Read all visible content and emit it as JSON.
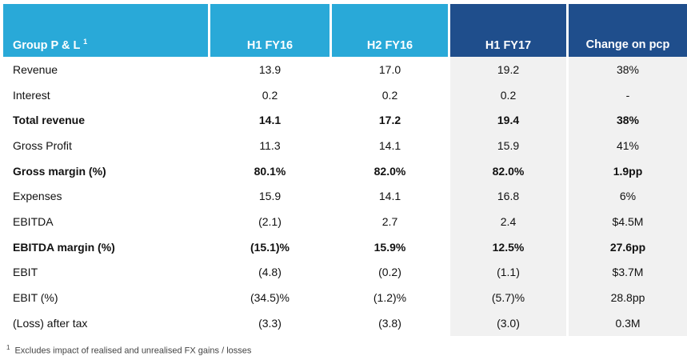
{
  "header": {
    "label": "Group P & L",
    "label_sup": "1",
    "h1_fy16": "H1 FY16",
    "h2_fy16": "H2 FY16",
    "h1_fy17": "H1 FY17",
    "change": "Change on pcp"
  },
  "rows": [
    {
      "label": "Revenue",
      "h1_fy16": "13.9",
      "h2_fy16": "17.0",
      "h1_fy17": "19.2",
      "change": "38%",
      "bold": false
    },
    {
      "label": "Interest",
      "h1_fy16": "0.2",
      "h2_fy16": "0.2",
      "h1_fy17": "0.2",
      "change": "-",
      "bold": false
    },
    {
      "label": "Total revenue",
      "h1_fy16": "14.1",
      "h2_fy16": "17.2",
      "h1_fy17": "19.4",
      "change": "38%",
      "bold": true
    },
    {
      "label": "Gross Profit",
      "h1_fy16": "11.3",
      "h2_fy16": "14.1",
      "h1_fy17": "15.9",
      "change": "41%",
      "bold": false
    },
    {
      "label": "Gross margin (%)",
      "h1_fy16": "80.1%",
      "h2_fy16": "82.0%",
      "h1_fy17": "82.0%",
      "change": "1.9pp",
      "bold": true
    },
    {
      "label": "Expenses",
      "h1_fy16": "15.9",
      "h2_fy16": "14.1",
      "h1_fy17": "16.8",
      "change": "6%",
      "bold": false
    },
    {
      "label": "EBITDA",
      "h1_fy16": "(2.1)",
      "h2_fy16": "2.7",
      "h1_fy17": "2.4",
      "change": "$4.5M",
      "bold": false
    },
    {
      "label": "EBITDA margin (%)",
      "h1_fy16": "(15.1)%",
      "h2_fy16": "15.9%",
      "h1_fy17": "12.5%",
      "change": "27.6pp",
      "bold": true
    },
    {
      "label": "EBIT",
      "h1_fy16": "(4.8)",
      "h2_fy16": "(0.2)",
      "h1_fy17": "(1.1)",
      "change": "$3.7M",
      "bold": false
    },
    {
      "label": "EBIT (%)",
      "h1_fy16": "(34.5)%",
      "h2_fy16": "(1.2)%",
      "h1_fy17": "(5.7)%",
      "change": "28.8pp",
      "bold": false
    },
    {
      "label": "(Loss) after tax",
      "h1_fy16": "(3.3)",
      "h2_fy16": "(3.8)",
      "h1_fy17": "(3.0)",
      "change": "0.3M",
      "bold": false
    }
  ],
  "footnote": {
    "marker": "1",
    "text": "Excludes impact of realised and unrealised FX gains / losses"
  },
  "colors": {
    "header_light_blue": "#29a9d8",
    "header_dark_blue": "#1f4e8c",
    "shaded_column": "#f1f1f1"
  }
}
